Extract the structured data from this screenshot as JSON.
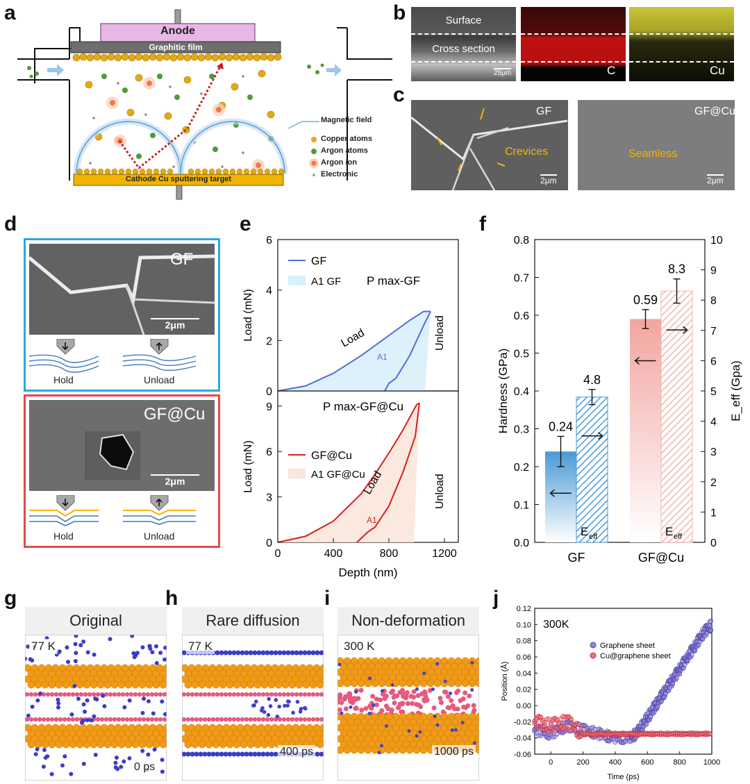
{
  "panels": {
    "a": "a",
    "b": "b",
    "c": "c",
    "d": "d",
    "e": "e",
    "f": "f",
    "g": "g",
    "h": "h",
    "i": "i",
    "j": "j"
  },
  "panel_a": {
    "anode": "Anode",
    "film": "Graphitic film",
    "target": "Cathode Cu sputtering target",
    "legend": [
      "Magnetic field",
      "Copper atoms",
      "Argon atoms",
      "Argon ion",
      "Electronic"
    ],
    "colors": {
      "anode": "#e7b7e6",
      "copper": "#e3a917",
      "argon": "#4f9a3a",
      "ion": "#f6b59a",
      "electron": "#8a8a8a",
      "field": "#7fb5e0",
      "target": "#f0b400"
    }
  },
  "panel_b": {
    "surface": "Surface",
    "cross": "Cross section",
    "scale": "25μm",
    "c": "C",
    "cu": "Cu"
  },
  "panel_c": {
    "gf": "GF",
    "gfcu": "GF@Cu",
    "crevices": "Crevices",
    "seamless": "Seamless",
    "scale": "2μm"
  },
  "panel_d": {
    "gf": "GF",
    "gfcu": "GF@Cu",
    "scale": "2μm",
    "hold": "Hold",
    "unload": "Unload",
    "colors": {
      "top": "#26a9e0",
      "bottom": "#e24a4a"
    }
  },
  "panel_g": {
    "title": "Original",
    "temp": "77 K",
    "time": "0 ps"
  },
  "panel_h": {
    "title": "Rare diffusion",
    "temp": "77 K",
    "time": "400 ps"
  },
  "panel_i": {
    "title": "Non-deformation",
    "temp": "300 K",
    "time": "1000 ps"
  },
  "chart_data": [
    {
      "id": "e_top",
      "type": "line",
      "xlabel": "Depth (nm)",
      "ylabel": "Load (mN)",
      "xlim": [
        0,
        1300
      ],
      "ylim": [
        0,
        6
      ],
      "yticks": [
        0,
        2,
        4,
        6
      ],
      "legend": [
        "GF",
        "A1 GF"
      ],
      "annotations": {
        "pmax": "P max-GF",
        "load": "Load",
        "unload": "Unload",
        "area": "A1"
      },
      "series": [
        {
          "name": "GF load",
          "x": [
            0,
            200,
            400,
            600,
            800,
            950,
            1050,
            1100
          ],
          "y": [
            0,
            0.2,
            0.7,
            1.4,
            2.2,
            2.8,
            3.15,
            3.15
          ]
        },
        {
          "name": "GF unload",
          "x": [
            1100,
            1050,
            950,
            850,
            800,
            770
          ],
          "y": [
            3.15,
            2.6,
            1.4,
            0.5,
            0.3,
            0
          ]
        }
      ],
      "colors": {
        "line": "#4f6fd6",
        "fill": "#d9f0fb"
      }
    },
    {
      "id": "e_bottom",
      "type": "line",
      "xlabel": "Depth (nm)",
      "ylabel": "Load (mN)",
      "xlim": [
        0,
        1300
      ],
      "ylim": [
        0,
        10
      ],
      "yticks": [
        0,
        3,
        6,
        9
      ],
      "xticks": [
        0,
        400,
        800,
        1200
      ],
      "legend": [
        "GF@Cu",
        "A1 GF@Cu"
      ],
      "annotations": {
        "pmax": "P max-GF@Cu",
        "load": "Load",
        "unload": "Unload",
        "area": "A1"
      },
      "series": [
        {
          "name": "GF@Cu load",
          "x": [
            0,
            200,
            400,
            600,
            700,
            800,
            900,
            1000,
            1020
          ],
          "y": [
            0,
            0.4,
            1.4,
            3.2,
            4.5,
            5.9,
            7.4,
            9.1,
            9.2
          ]
        },
        {
          "name": "GF@Cu unload",
          "x": [
            1020,
            990,
            900,
            800,
            700,
            650,
            570
          ],
          "y": [
            9.2,
            7.0,
            4.6,
            2.4,
            1.0,
            0.7,
            0
          ]
        }
      ],
      "colors": {
        "line": "#d91d1d",
        "fill": "#fbe6dc"
      }
    },
    {
      "id": "f",
      "type": "bar",
      "categories": [
        "GF",
        "GF@Cu"
      ],
      "ylabel": "Hardness (GPa)",
      "y2label": "E_eff (Gpa)",
      "ylim": [
        0,
        0.8
      ],
      "y2lim": [
        0,
        10
      ],
      "yticks": [
        "0.0",
        "0.1",
        "0.2",
        "0.3",
        "0.4",
        "0.5",
        "0.6",
        "0.7",
        "0.8"
      ],
      "y2ticks": [
        "0",
        "1",
        "2",
        "3",
        "4",
        "5",
        "6",
        "7",
        "8",
        "9",
        "10"
      ],
      "series": [
        {
          "name": "Hardness",
          "values": [
            0.24,
            0.59
          ],
          "errors": [
            0.04,
            0.025
          ],
          "labels": [
            "0.24",
            "0.59"
          ]
        },
        {
          "name": "E_eff",
          "values": [
            4.8,
            8.3
          ],
          "errors": [
            0.25,
            0.4
          ],
          "labels": [
            "4.8",
            "8.3"
          ]
        }
      ],
      "bar_label": "E",
      "bar_label_sub": "eff"
    },
    {
      "id": "j",
      "type": "scatter",
      "title": "300K",
      "xlabel": "Time (ps)",
      "ylabel": "Position (Å)",
      "xlim": [
        -100,
        1000
      ],
      "ylim": [
        -0.06,
        0.12
      ],
      "xticks": [
        "0",
        "200",
        "400",
        "600",
        "800",
        "1000"
      ],
      "yticks": [
        "-0.06",
        "-0.04",
        "-0.02",
        "0.00",
        "0.02",
        "0.04",
        "0.06",
        "0.08",
        "0.10",
        "0.12"
      ],
      "legend": [
        "Graphene sheet",
        "Cu@graphene sheet"
      ],
      "series": [
        {
          "name": "Graphene sheet",
          "x": [
            -100,
            0,
            100,
            200,
            300,
            400,
            500,
            550,
            600,
            650,
            700,
            750,
            800,
            850,
            900,
            950,
            1000
          ],
          "y": [
            -0.03,
            -0.035,
            -0.025,
            -0.03,
            -0.035,
            -0.04,
            -0.04,
            -0.03,
            -0.015,
            0.0,
            0.015,
            0.03,
            0.045,
            0.06,
            0.075,
            0.09,
            0.1
          ]
        },
        {
          "name": "Cu@graphene sheet",
          "x": [
            -100,
            0,
            100,
            200,
            300,
            400,
            500,
            600,
            700,
            800,
            900,
            1000
          ],
          "y": [
            -0.02,
            -0.025,
            -0.02,
            -0.035,
            -0.035,
            -0.035,
            -0.035,
            -0.035,
            -0.035,
            -0.035,
            -0.035,
            -0.035
          ]
        }
      ],
      "colors": {
        "graphene": "#8f86d8",
        "cu": "#e8757f"
      }
    }
  ]
}
